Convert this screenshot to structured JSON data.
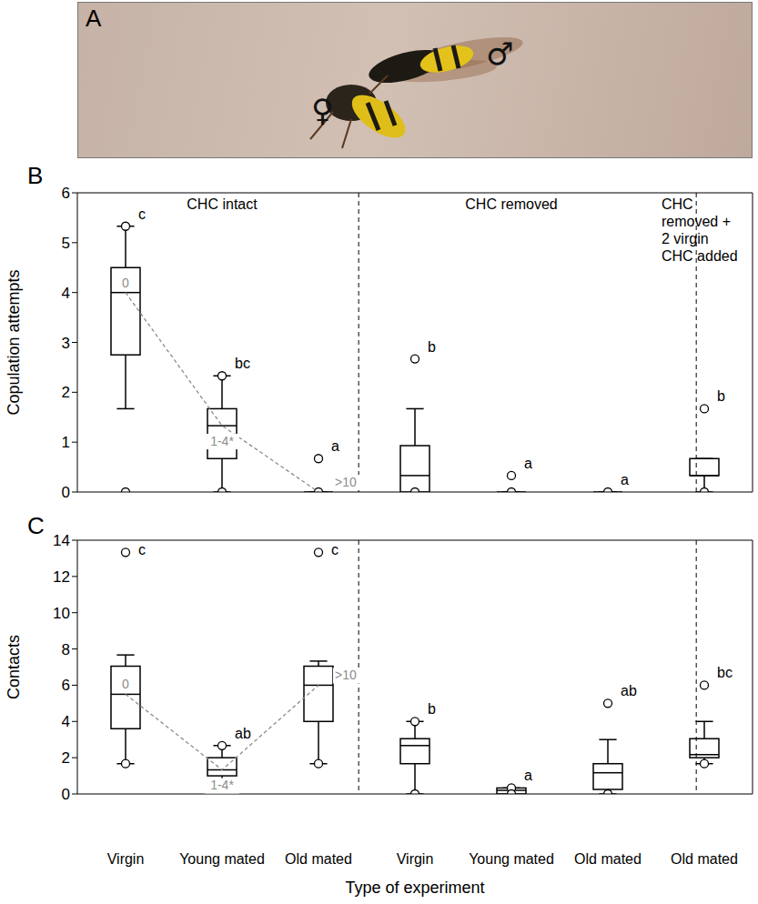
{
  "photo": {
    "label": "A",
    "female": "♀",
    "male": "♂"
  },
  "chart_data": [
    {
      "type": "box",
      "panel": "B",
      "y_label": "Copulation attempts",
      "categories": [
        "Virgin",
        "Young mated",
        "Old mated",
        "Virgin",
        "Young mated",
        "Old mated",
        "Old mated"
      ],
      "tick_labels": "y",
      "groups": [
        "CHC intact",
        "CHC removed",
        "CHC removed + 2 virgin CHC added"
      ],
      "ylim": [
        0,
        6
      ],
      "yticks": [
        0,
        1,
        2,
        3,
        4,
        5,
        6
      ],
      "color": "#000000",
      "boxes": [
        {
          "whisker_low": 1.67,
          "q1": 2.75,
          "median": 4.0,
          "q3": 4.5,
          "whisker_high": 5.33,
          "outliers": [
            5.33,
            0
          ]
        },
        {
          "whisker_low": 0,
          "q1": 0.67,
          "median": 1.33,
          "q3": 1.67,
          "whisker_high": 2.33,
          "outliers": [
            2.33,
            0
          ]
        },
        {
          "whisker_low": 0,
          "q1": 0,
          "median": 0,
          "q3": 0,
          "whisker_high": 0,
          "outliers": [
            0.67,
            0
          ]
        },
        {
          "whisker_low": 0,
          "q1": 0,
          "median": 0.33,
          "q3": 0.93,
          "whisker_high": 1.67,
          "outliers": [
            2.67,
            0
          ]
        },
        {
          "whisker_low": 0,
          "q1": 0,
          "median": 0,
          "q3": 0,
          "whisker_high": 0,
          "outliers": [
            0.33,
            0
          ]
        },
        {
          "whisker_low": 0,
          "q1": 0,
          "median": 0,
          "q3": 0,
          "whisker_high": 0,
          "outliers": [
            0
          ]
        },
        {
          "whisker_low": 0,
          "q1": 0.33,
          "median": 0.33,
          "q3": 0.67,
          "whisker_high": 0.67,
          "outliers": [
            1.67,
            0
          ]
        }
      ],
      "letters": [
        "c",
        "bc",
        "a",
        "b",
        "a",
        "a",
        "b"
      ],
      "trend": {
        "values": [
          4.0,
          1.33,
          0,
          null,
          null,
          null,
          null
        ],
        "labels": [
          "0",
          "1-4*",
          ">10",
          null,
          null,
          null,
          null
        ],
        "color": "#8c8c8c",
        "line_style": "dashed"
      }
    },
    {
      "type": "box",
      "panel": "C",
      "y_label": "Contacts",
      "x_label": "Type of experiment",
      "categories": [
        "Virgin",
        "Young mated",
        "Old mated",
        "Virgin",
        "Young mated",
        "Old mated",
        "Old mated"
      ],
      "ylim": [
        0,
        14
      ],
      "yticks": [
        0,
        2,
        4,
        6,
        8,
        10,
        12,
        14
      ],
      "color": "#000000",
      "boxes": [
        {
          "whisker_low": 1.67,
          "q1": 3.6,
          "median": 5.5,
          "q3": 7.05,
          "whisker_high": 7.67,
          "outliers": [
            13.33,
            1.67
          ]
        },
        {
          "whisker_low": 0.33,
          "q1": 1.0,
          "median": 1.33,
          "q3": 2.0,
          "whisker_high": 2.67,
          "outliers": [
            2.67,
            0.33
          ]
        },
        {
          "whisker_low": 1.67,
          "q1": 4.0,
          "median": 6.0,
          "q3": 7.05,
          "whisker_high": 7.33,
          "outliers": [
            13.33,
            1.67
          ]
        },
        {
          "whisker_low": 0,
          "q1": 1.67,
          "median": 2.67,
          "q3": 3.05,
          "whisker_high": 4.0,
          "outliers": [
            4.0,
            0
          ]
        },
        {
          "whisker_low": 0,
          "q1": 0,
          "median": 0.2,
          "q3": 0.33,
          "whisker_high": 0.33,
          "outliers": [
            0.33,
            0
          ]
        },
        {
          "whisker_low": 0,
          "q1": 0.25,
          "median": 1.17,
          "q3": 1.67,
          "whisker_high": 3.0,
          "outliers": [
            5.0,
            0
          ]
        },
        {
          "whisker_low": 1.67,
          "q1": 2.0,
          "median": 2.17,
          "q3": 3.05,
          "whisker_high": 4.0,
          "outliers": [
            6.0,
            1.67
          ]
        }
      ],
      "letters": [
        "c",
        "ab",
        "c",
        "b",
        "a",
        "ab",
        "bc"
      ],
      "trend": {
        "values": [
          5.5,
          1.33,
          6.0,
          null,
          null,
          null,
          null
        ],
        "labels": [
          "0",
          "1-4*",
          ">10",
          null,
          null,
          null,
          null
        ],
        "color": "#8c8c8c",
        "line_style": "dashed"
      }
    }
  ]
}
